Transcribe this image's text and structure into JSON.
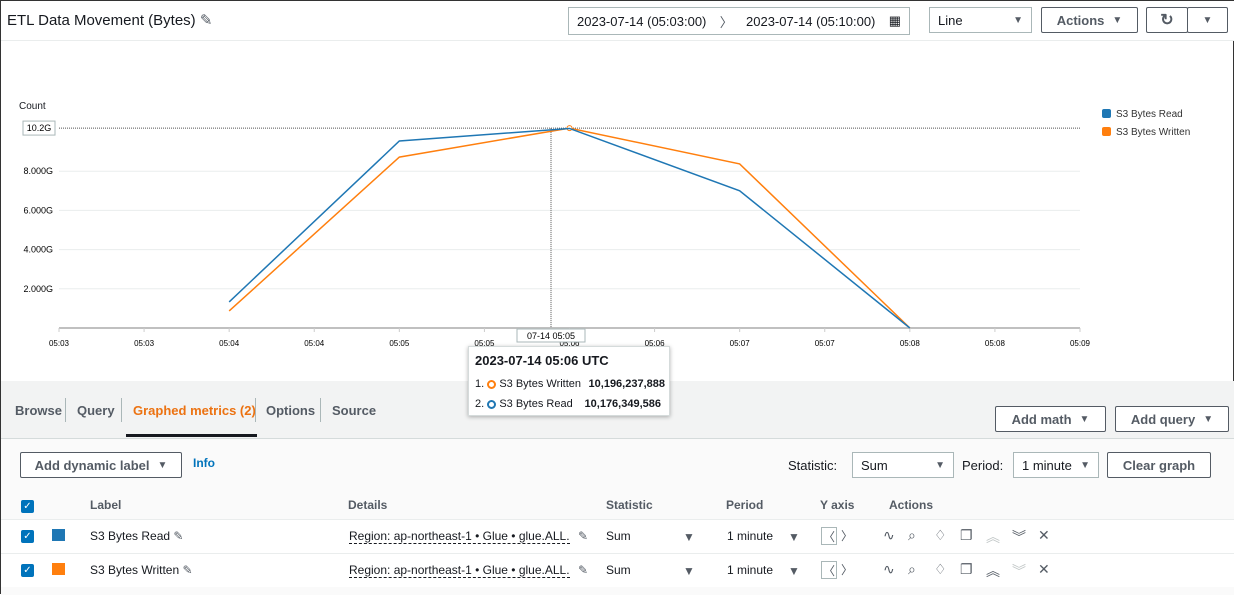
{
  "header": {
    "title": "ETL Data Movement (Bytes)",
    "time_start": "2023-07-14 (05:03:00)",
    "time_end": "2023-07-14 (05:10:00)",
    "chart_type": "Line",
    "actions_label": "Actions"
  },
  "chart_data": {
    "type": "line",
    "ylabel": "Count",
    "x": [
      "05:04",
      "05:05",
      "05:06",
      "05:07",
      "05:08"
    ],
    "x_tick_labels": [
      "05:03",
      "05:03",
      "05:04",
      "05:04",
      "05:05",
      "05:05",
      "05:06",
      "05:06",
      "05:07",
      "05:07",
      "05:08",
      "05:08",
      "05:09"
    ],
    "y_tick_labels": [
      "2.000G",
      "4.000G",
      "6.000G",
      "8.000G"
    ],
    "y_max_label": "10.2G",
    "ylim": [
      0,
      10.2
    ],
    "unit": "G",
    "series": [
      {
        "name": "S3 Bytes Read",
        "color": "#1f77b4",
        "values": [
          1.33,
          9.54,
          10.18,
          7.0,
          0
        ]
      },
      {
        "name": "S3 Bytes Written",
        "color": "#ff7f0e",
        "values": [
          0.87,
          8.72,
          10.2,
          8.37,
          0
        ]
      }
    ],
    "legend": "right",
    "grid": true,
    "hover_label": "07-14 05:05"
  },
  "tooltip": {
    "title": "2023-07-14 05:06 UTC",
    "items": [
      {
        "index": "1.",
        "name": "S3 Bytes Written",
        "value": "10,196,237,888",
        "color": "#ff7f0e"
      },
      {
        "index": "2.",
        "name": "S3 Bytes Read",
        "value": "10,176,349,586",
        "color": "#1f77b4"
      }
    ]
  },
  "tabs": [
    "Browse",
    "Query",
    "Graphed metrics (2)",
    "Options",
    "Source"
  ],
  "buttons": {
    "add_math": "Add math",
    "add_query": "Add query",
    "add_dynamic_label": "Add dynamic label",
    "info": "Info",
    "clear_graph": "Clear graph"
  },
  "controls": {
    "statistic_label": "Statistic:",
    "statistic": "Sum",
    "period_label": "Period:",
    "period": "1 minute"
  },
  "table": {
    "headers": [
      "Label",
      "Details",
      "Statistic",
      "Period",
      "Y axis",
      "Actions"
    ],
    "rows": [
      {
        "label": "S3 Bytes Read",
        "color": "#1f77b4",
        "details": "Region: ap-northeast-1 • Glue • glue.ALL.",
        "statistic": "Sum",
        "period": "1 minute"
      },
      {
        "label": "S3 Bytes Written",
        "color": "#ff7f0e",
        "details": "Region: ap-northeast-1 • Glue • glue.ALL.",
        "statistic": "Sum",
        "period": "1 minute"
      }
    ]
  }
}
